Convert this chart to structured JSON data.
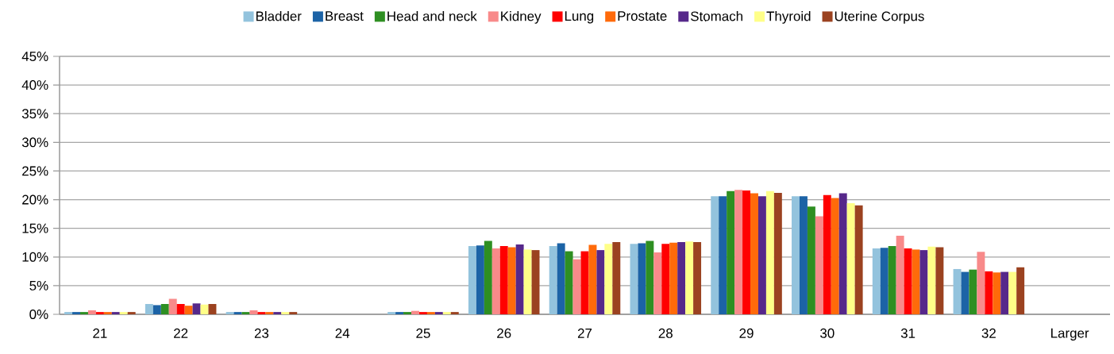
{
  "chart_data": {
    "type": "bar",
    "categories": [
      "21",
      "22",
      "23",
      "24",
      "25",
      "26",
      "27",
      "28",
      "29",
      "30",
      "31",
      "32",
      "Larger"
    ],
    "series": [
      {
        "name": "Bladder",
        "color": "#93c3dd",
        "values": [
          0.4,
          1.8,
          0.4,
          0,
          0.4,
          11.9,
          11.9,
          12.3,
          20.6,
          20.6,
          11.5,
          7.9,
          0
        ]
      },
      {
        "name": "Breast",
        "color": "#1c63a6",
        "values": [
          0.4,
          1.6,
          0.4,
          0,
          0.4,
          12.0,
          12.4,
          12.4,
          20.6,
          20.6,
          11.6,
          7.4,
          0
        ]
      },
      {
        "name": "Head and neck",
        "color": "#2e8f22",
        "values": [
          0.4,
          1.8,
          0.4,
          0,
          0.4,
          12.8,
          11.0,
          12.8,
          21.5,
          18.8,
          11.9,
          7.8,
          0
        ]
      },
      {
        "name": "Kidney",
        "color": "#f88a8a",
        "values": [
          0.7,
          2.7,
          0.7,
          0,
          0.6,
          11.5,
          9.6,
          10.8,
          21.7,
          17.1,
          13.7,
          10.9,
          0
        ]
      },
      {
        "name": "Lung",
        "color": "#ff0000",
        "values": [
          0.4,
          1.8,
          0.4,
          0,
          0.4,
          11.9,
          11.0,
          12.3,
          21.6,
          20.8,
          11.5,
          7.5,
          0
        ]
      },
      {
        "name": "Prostate",
        "color": "#ff6a0a",
        "values": [
          0.4,
          1.5,
          0.4,
          0,
          0.4,
          11.7,
          12.1,
          12.5,
          21.1,
          20.3,
          11.3,
          7.3,
          0
        ]
      },
      {
        "name": "Stomach",
        "color": "#56288a",
        "values": [
          0.4,
          1.9,
          0.4,
          0,
          0.4,
          12.2,
          11.2,
          12.6,
          20.6,
          21.1,
          11.2,
          7.4,
          0
        ]
      },
      {
        "name": "Thyroid",
        "color": "#ffff88",
        "values": [
          0.4,
          1.7,
          0.4,
          0,
          0.4,
          11.3,
          12.3,
          12.7,
          21.5,
          19.4,
          11.8,
          7.4,
          0
        ]
      },
      {
        "name": "Uterine Corpus",
        "color": "#9b4220",
        "values": [
          0.4,
          1.8,
          0.4,
          0,
          0.4,
          11.2,
          12.6,
          12.6,
          21.2,
          19.0,
          11.7,
          8.2,
          0
        ]
      }
    ],
    "ylim": [
      0,
      45
    ],
    "yticks": [
      {
        "value": 0,
        "label": "0%"
      },
      {
        "value": 5,
        "label": "5%"
      },
      {
        "value": 10,
        "label": "10%"
      },
      {
        "value": 15,
        "label": "15%"
      },
      {
        "value": 20,
        "label": "20%"
      },
      {
        "value": 25,
        "label": "25%"
      },
      {
        "value": 30,
        "label": "30%"
      },
      {
        "value": 35,
        "label": "35%"
      },
      {
        "value": 40,
        "label": "40%"
      },
      {
        "value": 45,
        "label": "45%"
      }
    ],
    "grid": "y",
    "legend": "top"
  }
}
